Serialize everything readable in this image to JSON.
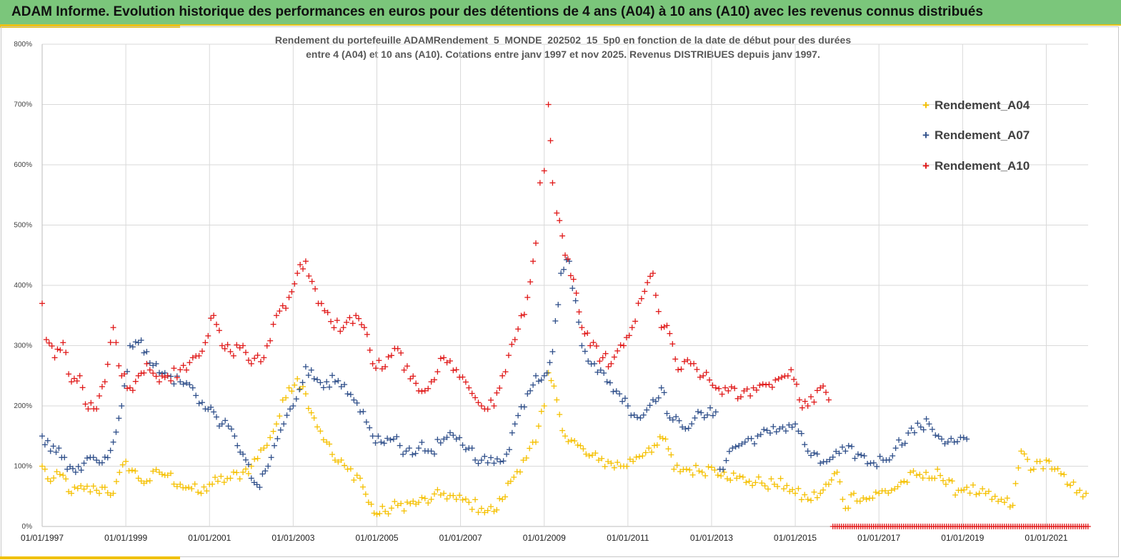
{
  "header": {
    "title": "ADAM Informe. Evolution historique des performances en euros pour des détentions de 4 ans (A04) à 10 ans (A10) avec les revenus connus distribués"
  },
  "colors": {
    "header_bg": "#7bc67b",
    "accent": "#f0c000",
    "A04": "#f5c000",
    "A07": "#2f4f8a",
    "A10": "#e01818"
  },
  "chart_data": {
    "type": "scatter",
    "title_lines": [
      "Rendement du portefeuille ADAMRendement_5_MONDE_202502_15_5p0  en fonction de la date de début pour des durées",
      "entre 4 (A04)  et 10 ans (A10). Cotations  entre janv 1997 et nov 2025. Revenus DISTRIBUES depuis janv 1997."
    ],
    "ylim": [
      0,
      800
    ],
    "yticks": [
      "0%",
      "100%",
      "200%",
      "300%",
      "400%",
      "500%",
      "600%",
      "700%",
      "800%"
    ],
    "xlim": [
      1997.0,
      2022.0
    ],
    "xticks": [
      {
        "label": "01/01/1997",
        "year": 1997
      },
      {
        "label": "01/01/1999",
        "year": 1999
      },
      {
        "label": "01/01/2001",
        "year": 2001
      },
      {
        "label": "01/01/2003",
        "year": 2003
      },
      {
        "label": "01/01/2005",
        "year": 2005
      },
      {
        "label": "01/01/2007",
        "year": 2007
      },
      {
        "label": "01/01/2009",
        "year": 2009
      },
      {
        "label": "01/01/2011",
        "year": 2011
      },
      {
        "label": "01/01/2013",
        "year": 2013
      },
      {
        "label": "01/01/2015",
        "year": 2015
      },
      {
        "label": "01/01/2017",
        "year": 2017
      },
      {
        "label": "01/01/2019",
        "year": 2019
      },
      {
        "label": "01/01/2021",
        "year": 2021
      }
    ],
    "legend_position": "top-right",
    "series": [
      {
        "name": "Rendement_A04",
        "color": "#f5c000",
        "x": [
          1997.0,
          1997.2,
          1997.5,
          1997.7,
          1998.0,
          1998.3,
          1998.5,
          1998.7,
          1999.0,
          1999.3,
          1999.5,
          1999.8,
          2000.0,
          2000.3,
          2000.5,
          2000.8,
          2001.0,
          2001.2,
          2001.5,
          2001.8,
          2002.0,
          2002.3,
          2002.6,
          2002.9,
          2003.1,
          2003.3,
          2003.5,
          2003.8,
          2004.0,
          2004.3,
          2004.6,
          2004.8,
          2005.0,
          2005.2,
          2005.5,
          2005.8,
          2006.0,
          2006.3,
          2006.6,
          2006.9,
          2007.2,
          2007.5,
          2007.8,
          2008.0,
          2008.2,
          2008.5,
          2008.8,
          2009.0,
          2009.1,
          2009.3,
          2009.5,
          2009.8,
          2010.0,
          2010.3,
          2010.6,
          2010.9,
          2011.2,
          2011.5,
          2011.7,
          2011.9,
          2012.1,
          2012.4,
          2012.7,
          2013.0,
          2013.3,
          2013.6,
          2013.9,
          2014.2,
          2014.5,
          2014.8,
          2015.0,
          2015.3,
          2015.6,
          2015.8,
          2016.0,
          2016.2,
          2016.4,
          2016.7,
          2017.0,
          2017.3,
          2017.6,
          2017.9,
          2018.2,
          2018.4,
          2018.6,
          2018.9,
          2019.1,
          2019.4,
          2019.7,
          2020.0,
          2020.2,
          2020.4,
          2020.7,
          2021.0,
          2021.2,
          2021.5,
          2021.8,
          2021.95
        ],
        "values": [
          100,
          75,
          85,
          55,
          62,
          60,
          65,
          55,
          108,
          80,
          75,
          90,
          85,
          70,
          65,
          55,
          70,
          75,
          80,
          90,
          100,
          130,
          170,
          230,
          245,
          220,
          180,
          140,
          110,
          95,
          80,
          40,
          20,
          25,
          35,
          38,
          40,
          45,
          55,
          45,
          40,
          30,
          25,
          45,
          75,
          110,
          140,
          200,
          255,
          210,
          150,
          135,
          120,
          110,
          105,
          100,
          115,
          130,
          135,
          145,
          95,
          95,
          92,
          98,
          90,
          80,
          75,
          72,
          70,
          68,
          55,
          45,
          55,
          70,
          90,
          30,
          55,
          45,
          55,
          60,
          75,
          85,
          80,
          95,
          70,
          60,
          65,
          55,
          45,
          40,
          35,
          125,
          95,
          110,
          95,
          70,
          60,
          55
        ]
      },
      {
        "name": "Rendement_A07",
        "color": "#2f4f8a",
        "x": [
          1997.0,
          1997.2,
          1997.4,
          1997.6,
          1997.8,
          1998.0,
          1998.3,
          1998.5,
          1998.7,
          1998.9,
          1999.1,
          1999.3,
          1999.5,
          1999.8,
          2000.0,
          2000.3,
          2000.6,
          2000.9,
          2001.1,
          2001.3,
          2001.6,
          2001.8,
          2002.0,
          2002.2,
          2002.4,
          2002.7,
          2003.0,
          2003.3,
          2003.5,
          2003.8,
          2004.0,
          2004.3,
          2004.6,
          2004.9,
          2005.1,
          2005.4,
          2005.7,
          2006.0,
          2006.3,
          2006.6,
          2006.9,
          2007.2,
          2007.5,
          2007.8,
          2008.1,
          2008.3,
          2008.6,
          2008.8,
          2009.0,
          2009.2,
          2009.4,
          2009.6,
          2009.9,
          2010.2,
          2010.5,
          2010.8,
          2011.0,
          2011.3,
          2011.6,
          2011.8,
          2012.0,
          2012.3,
          2012.6,
          2012.9,
          2013.1,
          2013.2,
          2013.5,
          2013.8,
          2014.1,
          2014.4,
          2014.7,
          2015.0,
          2015.3,
          2015.6,
          2015.9,
          2016.2,
          2016.5,
          2016.8,
          2017.1,
          2017.4,
          2017.7,
          2018.0,
          2018.2,
          2018.5,
          2018.8,
          2019.1
        ],
        "values": [
          150,
          125,
          130,
          95,
          90,
          105,
          110,
          115,
          140,
          200,
          300,
          305,
          290,
          255,
          250,
          240,
          230,
          195,
          190,
          170,
          150,
          120,
          80,
          65,
          100,
          160,
          200,
          265,
          245,
          240,
          240,
          220,
          190,
          150,
          140,
          145,
          125,
          130,
          125,
          145,
          145,
          130,
          110,
          105,
          120,
          170,
          220,
          250,
          250,
          290,
          420,
          440,
          300,
          270,
          240,
          220,
          200,
          180,
          210,
          230,
          180,
          165,
          180,
          185,
          190,
          95,
          130,
          140,
          150,
          155,
          165,
          170,
          125,
          105,
          115,
          125,
          120,
          105,
          110,
          130,
          155,
          165,
          170,
          145,
          140,
          145
        ]
      },
      {
        "name": "Rendement_A10",
        "color": "#e01818",
        "x": [
          1997.0,
          1997.1,
          1997.3,
          1997.5,
          1997.7,
          1997.9,
          1998.1,
          1998.3,
          1998.5,
          1998.7,
          1998.9,
          1999.1,
          1999.3,
          1999.5,
          1999.8,
          2000.0,
          2000.3,
          2000.6,
          2000.9,
          2001.1,
          2001.3,
          2001.5,
          2001.8,
          2002.0,
          2002.3,
          2002.6,
          2002.9,
          2003.1,
          2003.3,
          2003.6,
          2003.9,
          2004.2,
          2004.5,
          2004.7,
          2004.9,
          2005.2,
          2005.5,
          2005.8,
          2006.0,
          2006.3,
          2006.6,
          2006.9,
          2007.2,
          2007.5,
          2007.8,
          2008.0,
          2008.3,
          2008.6,
          2008.8,
          2008.9,
          2009.0,
          2009.1,
          2009.15,
          2009.2,
          2009.3,
          2009.5,
          2009.7,
          2009.9,
          2010.1,
          2010.4,
          2010.6,
          2010.9,
          2011.1,
          2011.4,
          2011.6,
          2011.8,
          2012.0,
          2012.2,
          2012.5,
          2012.8,
          2013.1,
          2013.4,
          2013.7,
          2014.0,
          2014.3,
          2014.6,
          2014.9,
          2015.1,
          2015.3,
          2015.6,
          2015.8
        ],
        "values": [
          370,
          310,
          280,
          305,
          240,
          250,
          195,
          195,
          240,
          330,
          250,
          230,
          250,
          270,
          240,
          250,
          260,
          280,
          305,
          350,
          300,
          290,
          300,
          270,
          280,
          350,
          380,
          420,
          440,
          370,
          340,
          330,
          350,
          330,
          270,
          265,
          295,
          245,
          225,
          240,
          280,
          260,
          230,
          200,
          200,
          250,
          310,
          380,
          470,
          570,
          590,
          700,
          640,
          570,
          520,
          450,
          410,
          330,
          300,
          280,
          270,
          300,
          330,
          390,
          420,
          330,
          320,
          260,
          270,
          250,
          230,
          225,
          215,
          230,
          235,
          245,
          260,
          210,
          200,
          230,
          210
        ]
      }
    ],
    "zero_marker_series": {
      "name": "Rendement_A10",
      "x_start": 2015.9,
      "x_end": 2022.0,
      "value": 0
    }
  }
}
